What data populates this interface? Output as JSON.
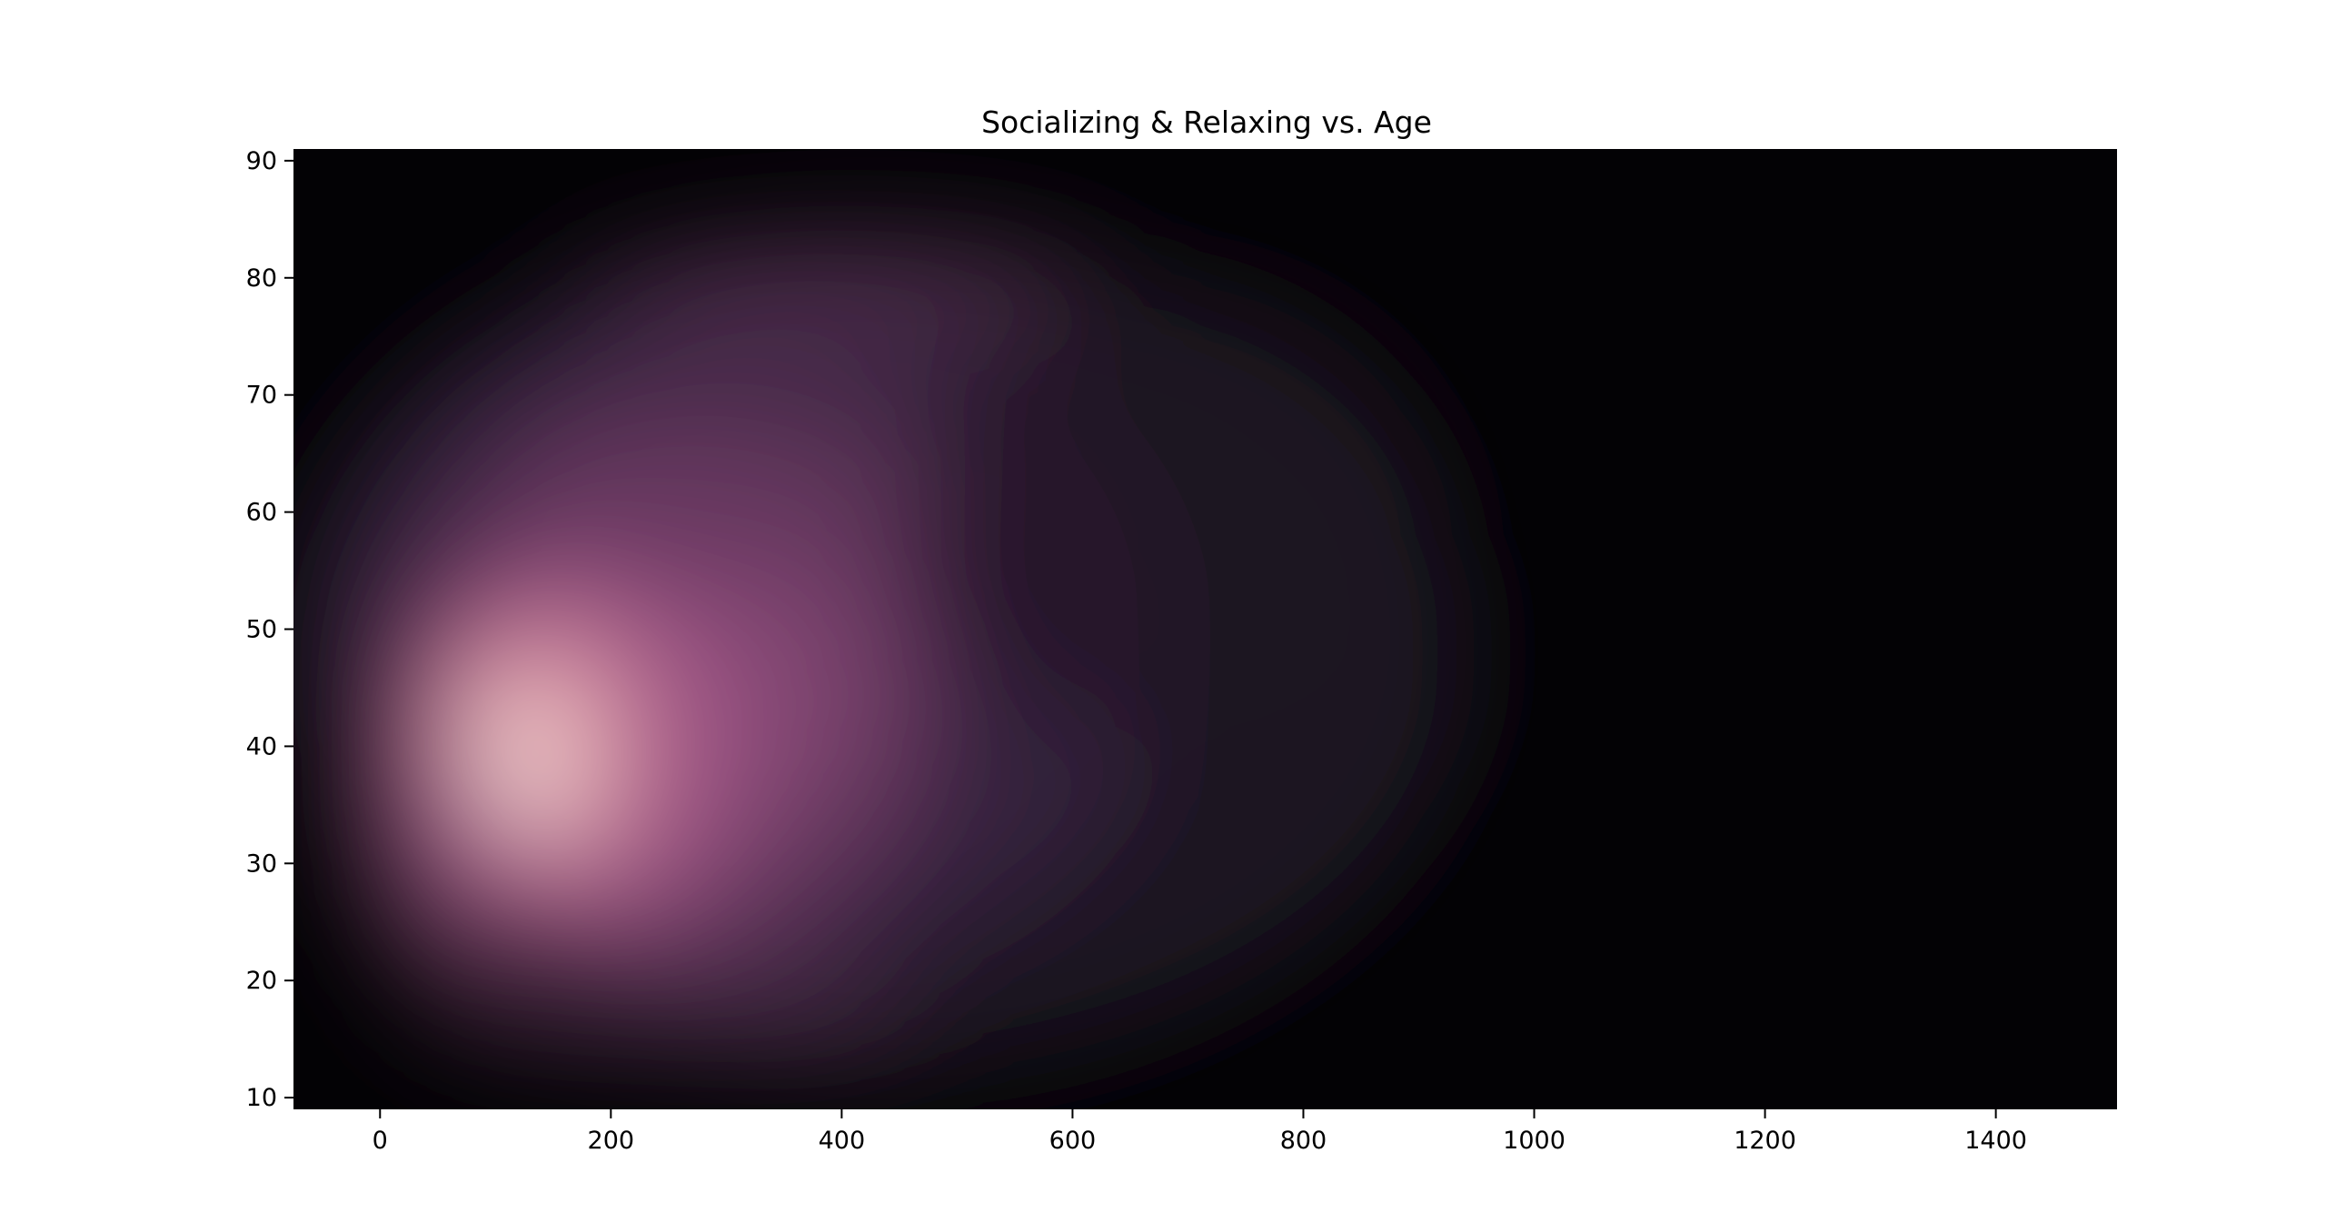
{
  "chart_data": {
    "type": "heatmap",
    "subtype": "kde-density",
    "title": "Socializing & Relaxing vs. Age",
    "xlabel": "",
    "ylabel": "",
    "xlim": [
      -75,
      1505
    ],
    "ylim": [
      9,
      91
    ],
    "x_ticks": [
      0,
      200,
      400,
      600,
      800,
      1000,
      1200,
      1400
    ],
    "y_ticks": [
      10,
      20,
      30,
      40,
      50,
      60,
      70,
      80,
      90
    ],
    "grid": false,
    "legend": "none",
    "colormap": [
      "#030205",
      "#1a1322",
      "#3a2340",
      "#6a3a63",
      "#9e5585",
      "#cf7f9d",
      "#ecb8b6",
      "#fbeee6"
    ],
    "density_peaks": [
      {
        "x": 125,
        "y": 38,
        "intensity": 1.0
      },
      {
        "x": 150,
        "y": 50,
        "intensity": 0.55
      },
      {
        "x": 300,
        "y": 45,
        "intensity": 0.45
      },
      {
        "x": 60,
        "y": 28,
        "intensity": 0.45
      },
      {
        "x": 280,
        "y": 62,
        "intensity": 0.35
      },
      {
        "x": 400,
        "y": 79,
        "intensity": 0.2
      },
      {
        "x": 250,
        "y": 17,
        "intensity": 0.25
      },
      {
        "x": 500,
        "y": 40,
        "intensity": 0.18
      }
    ]
  }
}
